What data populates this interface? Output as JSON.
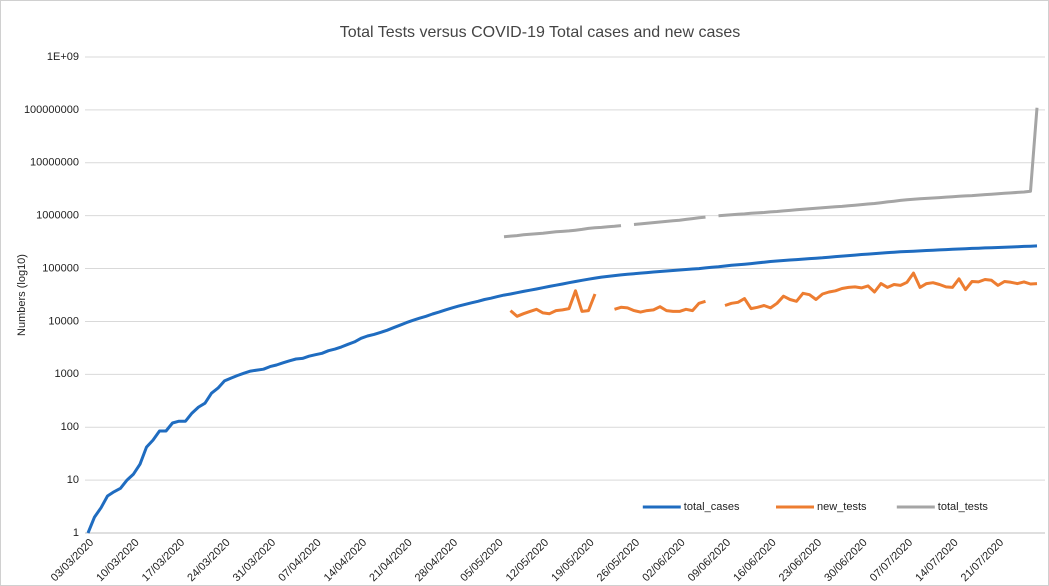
{
  "chart_data": {
    "type": "line",
    "title": "Total Tests versus COVID-19 Total cases and new cases",
    "y_label": "Numbers (log10)",
    "yscale": "log",
    "grid": true,
    "legend": "lower right",
    "ylim": [
      1,
      1000000000
    ],
    "yticks": [
      1,
      10,
      100,
      1000,
      10000,
      100000,
      1000000,
      10000000,
      100000000,
      {
        "value": 1000000000,
        "label": "1E+09"
      }
    ],
    "categories": [
      "03/03/2020",
      null,
      null,
      null,
      null,
      null,
      null,
      "10/03/2020",
      null,
      null,
      null,
      null,
      null,
      null,
      "17/03/2020",
      null,
      null,
      null,
      null,
      null,
      null,
      "24/03/2020",
      null,
      null,
      null,
      null,
      null,
      null,
      "31/03/2020",
      null,
      null,
      null,
      null,
      null,
      null,
      "07/04/2020",
      null,
      null,
      null,
      null,
      null,
      null,
      "14/04/2020",
      null,
      null,
      null,
      null,
      null,
      null,
      "21/04/2020",
      null,
      null,
      null,
      null,
      null,
      null,
      "28/04/2020",
      null,
      null,
      null,
      null,
      null,
      null,
      "05/05/2020",
      null,
      null,
      null,
      null,
      null,
      null,
      "12/05/2020",
      null,
      null,
      null,
      null,
      null,
      null,
      "19/05/2020",
      null,
      null,
      null,
      null,
      null,
      null,
      "26/05/2020",
      null,
      null,
      null,
      null,
      null,
      null,
      "02/06/2020",
      null,
      null,
      null,
      null,
      null,
      null,
      "09/06/2020",
      null,
      null,
      null,
      null,
      null,
      null,
      "16/06/2020",
      null,
      null,
      null,
      null,
      null,
      null,
      "23/06/2020",
      null,
      null,
      null,
      null,
      null,
      null,
      "30/06/2020",
      null,
      null,
      null,
      null,
      null,
      null,
      "07/07/2020",
      null,
      null,
      null,
      null,
      null,
      null,
      "14/07/2020",
      null,
      null,
      null,
      null,
      null,
      null,
      "21/07/2020",
      null,
      null,
      null,
      null,
      null,
      null
    ],
    "series": [
      {
        "name": "total_cases",
        "color": "#1f6cc0",
        "values": [
          1,
          2,
          3,
          5,
          6,
          7,
          10,
          13,
          20,
          42,
          57,
          85,
          85,
          120,
          130,
          130,
          185,
          240,
          285,
          440,
          550,
          750,
          850,
          950,
          1050,
          1150,
          1200,
          1250,
          1400,
          1500,
          1650,
          1800,
          1950,
          2000,
          2200,
          2350,
          2500,
          2800,
          3000,
          3300,
          3700,
          4100,
          4800,
          5300,
          5700,
          6200,
          6800,
          7600,
          8500,
          9500,
          10500,
          11500,
          12500,
          13800,
          15000,
          16500,
          18000,
          19500,
          21000,
          22500,
          24000,
          26000,
          27500,
          29500,
          31500,
          33000,
          35000,
          37000,
          39000,
          41000,
          43500,
          46000,
          48500,
          51000,
          54000,
          57000,
          60000,
          63000,
          66000,
          69000,
          71000,
          73500,
          76000,
          78000,
          80000,
          82000,
          84000,
          86000,
          88000,
          90000,
          92000,
          94000,
          96000,
          98000,
          100000,
          103000,
          106000,
          108000,
          112000,
          115000,
          118000,
          121000,
          124000,
          128000,
          132000,
          136000,
          139000,
          142000,
          145000,
          148000,
          151000,
          154000,
          157000,
          160000,
          164000,
          168000,
          172000,
          176000,
          180000,
          184000,
          188000,
          192000,
          196000,
          200000,
          204000,
          207000,
          210000,
          213000,
          216000,
          219000,
          222000,
          225000,
          228000,
          231000,
          234000,
          237000,
          240000,
          243000,
          246000,
          248000,
          250000,
          253000,
          256000,
          259000,
          262000,
          265000,
          268000
        ]
      },
      {
        "name": "new_tests",
        "color": "#ed7d31",
        "values": [
          null,
          null,
          null,
          null,
          null,
          null,
          null,
          null,
          null,
          null,
          null,
          null,
          null,
          null,
          null,
          null,
          null,
          null,
          null,
          null,
          null,
          null,
          null,
          null,
          null,
          null,
          null,
          null,
          null,
          null,
          null,
          null,
          null,
          null,
          null,
          null,
          null,
          null,
          null,
          null,
          null,
          null,
          null,
          null,
          null,
          null,
          null,
          null,
          null,
          null,
          null,
          null,
          null,
          null,
          null,
          null,
          null,
          null,
          null,
          null,
          null,
          null,
          null,
          null,
          null,
          16000,
          12500,
          14000,
          15500,
          17000,
          14500,
          14000,
          16000,
          16500,
          17500,
          38000,
          15500,
          16000,
          33000,
          null,
          null,
          17000,
          18500,
          18000,
          16000,
          15000,
          16000,
          16500,
          19000,
          16000,
          15500,
          15500,
          17000,
          16000,
          22000,
          24000,
          null,
          null,
          20000,
          22000,
          23000,
          27000,
          17500,
          18500,
          20000,
          18000,
          22000,
          30000,
          26000,
          24000,
          34000,
          32000,
          26000,
          33000,
          36000,
          38000,
          42000,
          44000,
          45000,
          43000,
          47000,
          36000,
          52000,
          44000,
          50000,
          48000,
          55000,
          82000,
          44000,
          52000,
          54000,
          50000,
          45000,
          44000,
          64000,
          40000,
          57000,
          56000,
          62000,
          60000,
          48000,
          57000,
          55000,
          52000,
          56000,
          51000,
          52000
        ]
      },
      {
        "name": "total_tests",
        "color": "#a5a5a5",
        "values": [
          null,
          null,
          null,
          null,
          null,
          null,
          null,
          null,
          null,
          null,
          null,
          null,
          null,
          null,
          null,
          null,
          null,
          null,
          null,
          null,
          null,
          null,
          null,
          null,
          null,
          null,
          null,
          null,
          null,
          null,
          null,
          null,
          null,
          null,
          null,
          null,
          null,
          null,
          null,
          null,
          null,
          null,
          null,
          null,
          null,
          null,
          null,
          null,
          null,
          null,
          null,
          null,
          null,
          null,
          null,
          null,
          null,
          null,
          null,
          null,
          null,
          null,
          null,
          null,
          400000,
          410000,
          420000,
          435000,
          445000,
          455000,
          465000,
          480000,
          495000,
          505000,
          515000,
          530000,
          550000,
          575000,
          590000,
          600000,
          615000,
          630000,
          650000,
          null,
          680000,
          700000,
          720000,
          740000,
          760000,
          780000,
          800000,
          820000,
          850000,
          880000,
          910000,
          940000,
          null,
          1000000,
          1020000,
          1040000,
          1060000,
          1080000,
          1110000,
          1130000,
          1150000,
          1180000,
          1200000,
          1230000,
          1260000,
          1290000,
          1320000,
          1350000,
          1380000,
          1410000,
          1440000,
          1470000,
          1500000,
          1540000,
          1580000,
          1620000,
          1660000,
          1700000,
          1760000,
          1820000,
          1880000,
          1940000,
          2000000,
          2040000,
          2080000,
          2120000,
          2160000,
          2200000,
          2240000,
          2280000,
          2320000,
          2360000,
          2400000,
          2450000,
          2500000,
          2550000,
          2600000,
          2650000,
          2700000,
          2750000,
          2800000,
          2900000,
          110000000
        ]
      }
    ]
  }
}
